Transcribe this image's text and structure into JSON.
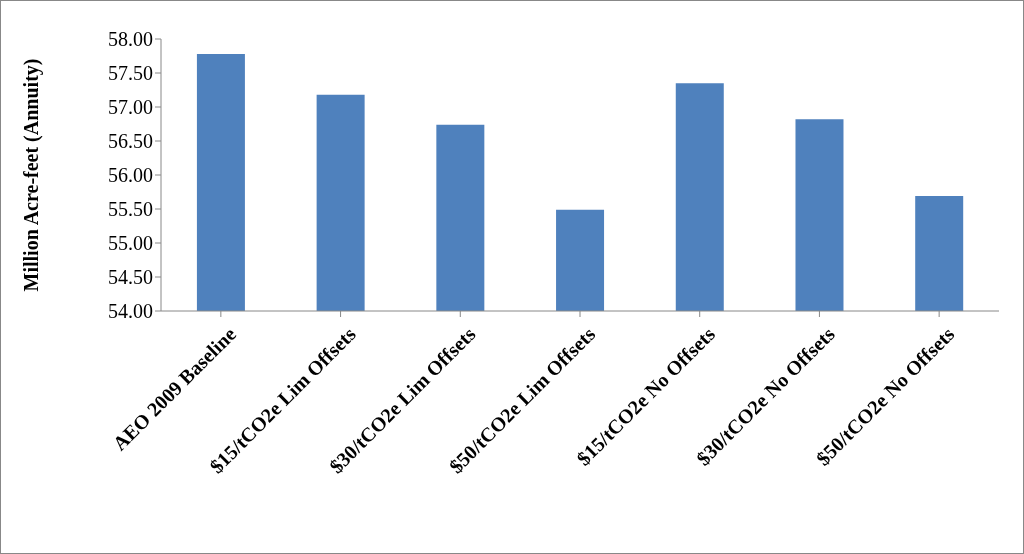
{
  "chart_data": {
    "type": "bar",
    "ylabel": "Million Acre-feet (Annuity)",
    "categories": [
      "AEO 2009 Baseline",
      "$15/tCO2e Lim Offsets",
      "$30/tCO2e Lim Offsets",
      "$50/tCO2e Lim Offsets",
      "$15/tCO2e No Offsets",
      "$30/tCO2e No Offsets",
      "$50/tCO2e No Offsets"
    ],
    "values": [
      57.78,
      57.18,
      56.74,
      55.49,
      57.35,
      56.82,
      55.69
    ],
    "color": "#4f81bd",
    "ylim": [
      54,
      58
    ],
    "yticks": [
      {
        "value": 54,
        "label": "54.00"
      },
      {
        "value": 54.5,
        "label": "54.50"
      },
      {
        "value": 55,
        "label": "55.00"
      },
      {
        "value": 55.5,
        "label": "55.50"
      },
      {
        "value": 56,
        "label": "56.00"
      },
      {
        "value": 56.5,
        "label": "56.50"
      },
      {
        "value": 57,
        "label": "57.00"
      },
      {
        "value": 57.5,
        "label": "57.50"
      },
      {
        "value": 58,
        "label": "58.00"
      }
    ],
    "grid": false
  }
}
